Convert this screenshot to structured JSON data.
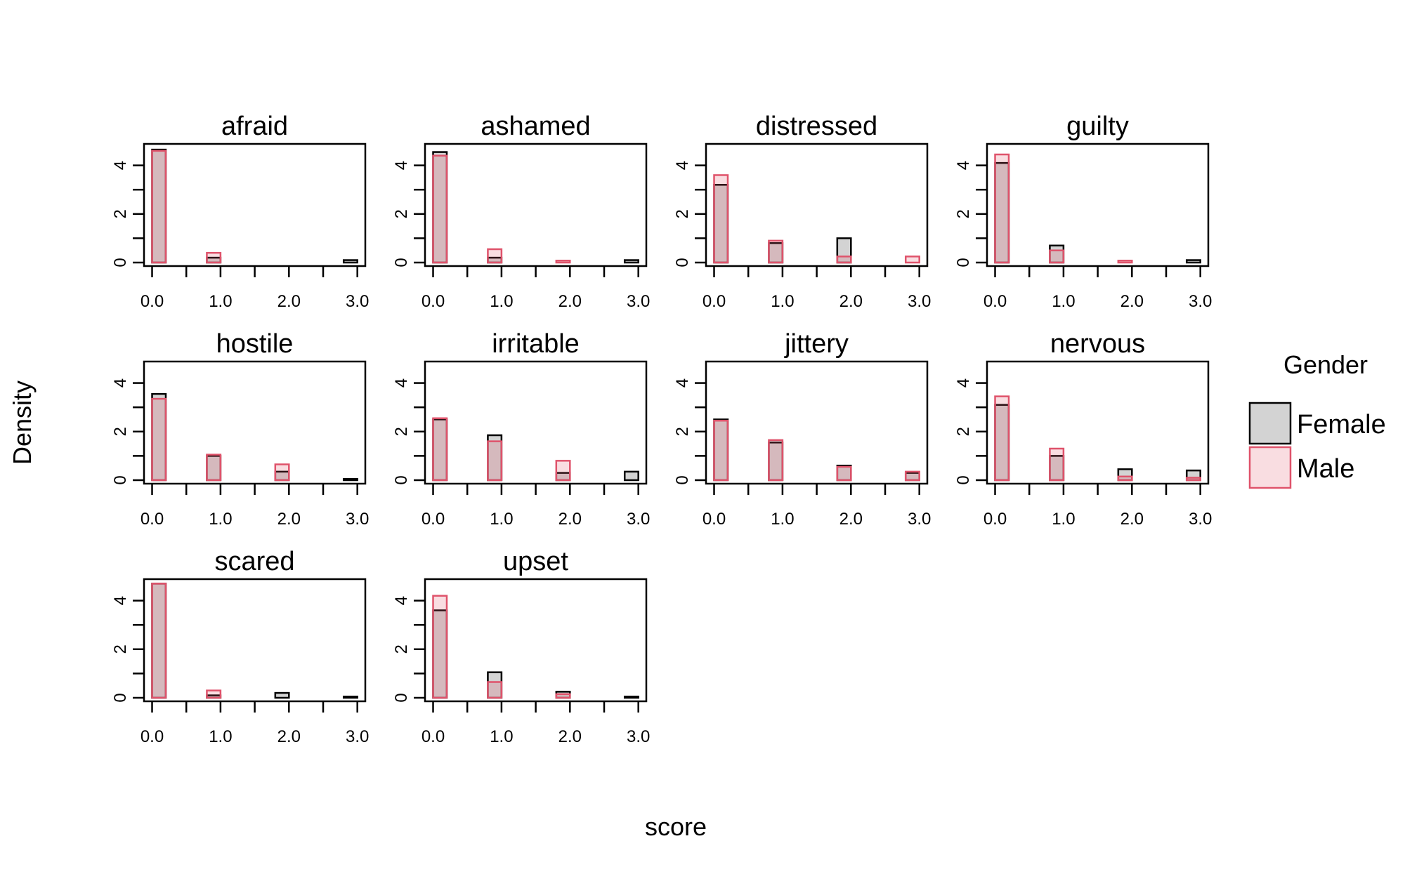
{
  "chart_data": {
    "type": "bar",
    "subtype": "faceted overlaid histograms",
    "xlabel": "score",
    "ylabel": "Density",
    "xlim": [
      0,
      3
    ],
    "ylim": [
      0,
      4.8
    ],
    "x_ticks": [
      "0.0",
      "1.0",
      "2.0",
      "3.0"
    ],
    "y_ticks": [
      "0",
      "2",
      "4"
    ],
    "bins": [
      0,
      1,
      2,
      3
    ],
    "legend": {
      "title": "Gender",
      "position": "right",
      "entries": [
        "Female",
        "Male"
      ]
    },
    "colors": {
      "Female_fill": "#d3d3d3",
      "Female_border": "#000000",
      "Male_fill": "#df536b",
      "Male_border": "#df536b"
    },
    "panels": [
      {
        "title": "afraid",
        "series": [
          {
            "name": "Female",
            "values": [
              4.65,
              0.2,
              0,
              0.1
            ]
          },
          {
            "name": "Male",
            "values": [
              4.6,
              0.4,
              0,
              0
            ]
          }
        ]
      },
      {
        "title": "ashamed",
        "series": [
          {
            "name": "Female",
            "values": [
              4.55,
              0.2,
              0,
              0.1
            ]
          },
          {
            "name": "Male",
            "values": [
              4.4,
              0.55,
              0.08,
              0
            ]
          }
        ]
      },
      {
        "title": "distressed",
        "series": [
          {
            "name": "Female",
            "values": [
              3.2,
              0.8,
              1.0,
              0
            ]
          },
          {
            "name": "Male",
            "values": [
              3.6,
              0.9,
              0.25,
              0.25
            ]
          }
        ]
      },
      {
        "title": "guilty",
        "series": [
          {
            "name": "Female",
            "values": [
              4.1,
              0.7,
              0,
              0.1
            ]
          },
          {
            "name": "Male",
            "values": [
              4.45,
              0.5,
              0.08,
              0
            ]
          }
        ]
      },
      {
        "title": "hostile",
        "series": [
          {
            "name": "Female",
            "values": [
              3.55,
              1.0,
              0.35,
              0.05
            ]
          },
          {
            "name": "Male",
            "values": [
              3.35,
              1.05,
              0.65,
              0
            ]
          }
        ]
      },
      {
        "title": "irritable",
        "series": [
          {
            "name": "Female",
            "values": [
              2.5,
              1.85,
              0.3,
              0.35
            ]
          },
          {
            "name": "Male",
            "values": [
              2.55,
              1.6,
              0.8,
              0
            ]
          }
        ]
      },
      {
        "title": "jittery",
        "series": [
          {
            "name": "Female",
            "values": [
              2.5,
              1.55,
              0.6,
              0.3
            ]
          },
          {
            "name": "Male",
            "values": [
              2.45,
              1.65,
              0.55,
              0.35
            ]
          }
        ]
      },
      {
        "title": "nervous",
        "series": [
          {
            "name": "Female",
            "values": [
              3.1,
              1.0,
              0.45,
              0.4
            ]
          },
          {
            "name": "Male",
            "values": [
              3.45,
              1.3,
              0.15,
              0.1
            ]
          }
        ]
      },
      {
        "title": "scared",
        "series": [
          {
            "name": "Female",
            "values": [
              4.7,
              0.1,
              0.2,
              0.05
            ]
          },
          {
            "name": "Male",
            "values": [
              4.7,
              0.3,
              0,
              0
            ]
          }
        ]
      },
      {
        "title": "upset",
        "series": [
          {
            "name": "Female",
            "values": [
              3.6,
              1.05,
              0.25,
              0.05
            ]
          },
          {
            "name": "Male",
            "values": [
              4.2,
              0.65,
              0.15,
              0
            ]
          }
        ]
      }
    ]
  }
}
